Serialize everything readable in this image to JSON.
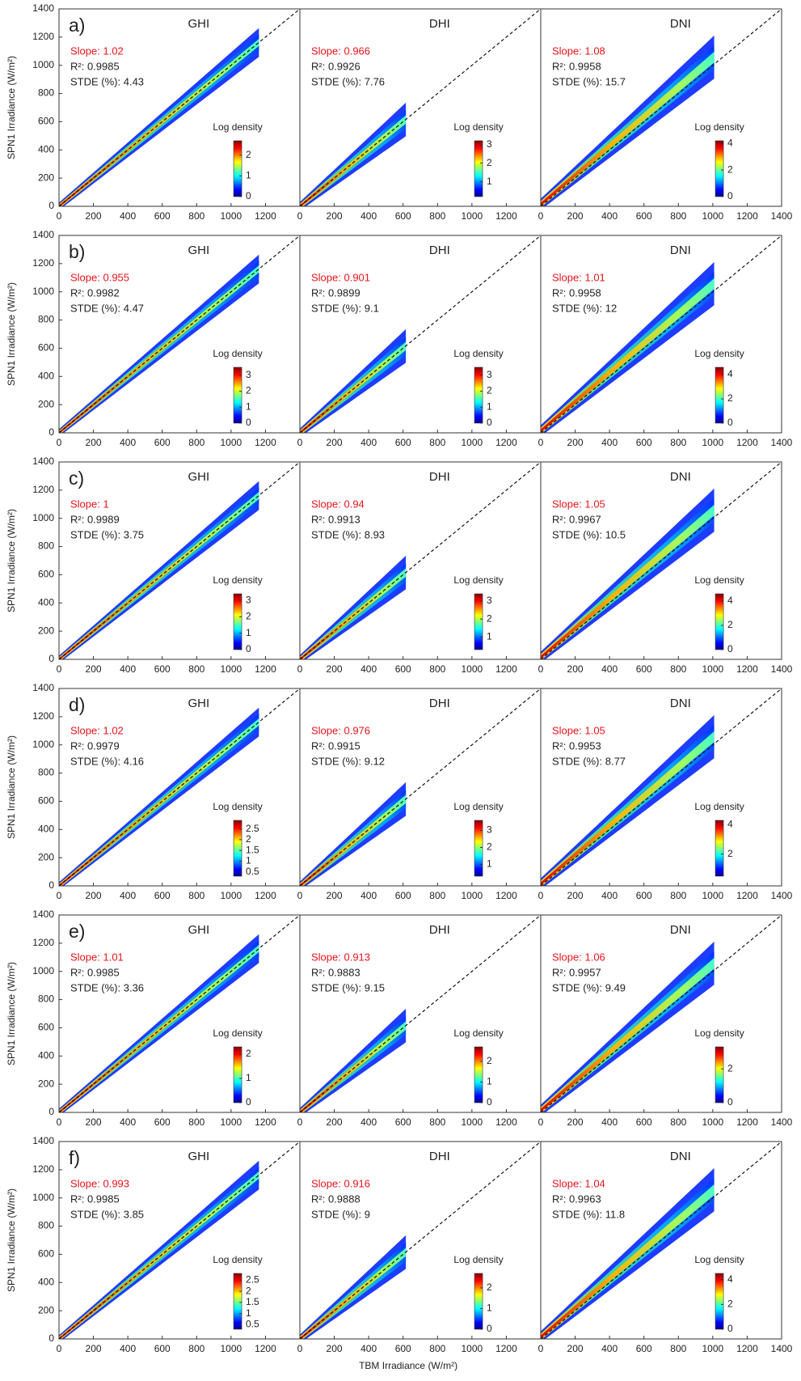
{
  "chart_data": [
    {
      "type": "scatter",
      "panel": "a)",
      "title": "GHI",
      "ylabel": "SPN1 Irradiance (W/m²)",
      "annotations": [
        "Slope: 1.02",
        "R²: 0.9985",
        "STDE (%): 4.43"
      ],
      "annotation_colors": [
        "#e8141b",
        "#222222",
        "#222222"
      ],
      "xlim": [
        0,
        1400
      ],
      "ylim": [
        0,
        1400
      ],
      "xticks": [
        0,
        200,
        400,
        600,
        800,
        1000,
        1200
      ],
      "yticks": [
        0,
        200,
        400,
        600,
        800,
        1000,
        1200,
        1400
      ],
      "colorbar": {
        "title": "Log density",
        "lim": [
          0,
          2.7
        ],
        "ticks": [
          0,
          1,
          2
        ]
      }
    },
    {
      "type": "scatter",
      "title": "DHI",
      "annotations": [
        "Slope: 0.966",
        "R²: 0.9926",
        "STDE (%): 7.76"
      ],
      "annotation_colors": [
        "#e8141b",
        "#222222",
        "#222222"
      ],
      "xlim": [
        0,
        1400
      ],
      "ylim": [
        0,
        1400
      ],
      "xticks": [
        0,
        200,
        400,
        600,
        800,
        1000,
        1200
      ],
      "colorbar": {
        "title": "Log density",
        "lim": [
          0.2,
          3.2
        ],
        "ticks": [
          1,
          2,
          3
        ]
      }
    },
    {
      "type": "scatter",
      "title": "DNI",
      "annotations": [
        "Slope: 1.08",
        "R²: 0.9958",
        "STDE (%): 15.7"
      ],
      "annotation_colors": [
        "#e8141b",
        "#222222",
        "#222222"
      ],
      "xlim": [
        0,
        1400
      ],
      "ylim": [
        0,
        1400
      ],
      "xticks": [
        0,
        200,
        400,
        600,
        800,
        1000,
        1200,
        1400
      ],
      "colorbar": {
        "title": "Log density",
        "lim": [
          0,
          4.2
        ],
        "ticks": [
          0,
          2,
          4
        ]
      }
    },
    {
      "type": "scatter",
      "panel": "b)",
      "title": "GHI",
      "ylabel": "SPN1 Irradiance (W/m²)",
      "annotations": [
        "Slope: 0.955",
        "R²: 0.9982",
        "STDE (%): 4.47"
      ],
      "annotation_colors": [
        "#e8141b",
        "#222222",
        "#222222"
      ],
      "xlim": [
        0,
        1400
      ],
      "ylim": [
        0,
        1400
      ],
      "xticks": [
        0,
        200,
        400,
        600,
        800,
        1000,
        1200
      ],
      "yticks": [
        0,
        200,
        400,
        600,
        800,
        1000,
        1200,
        1400
      ],
      "colorbar": {
        "title": "Log density",
        "lim": [
          0,
          3.5
        ],
        "ticks": [
          0,
          1,
          2,
          3
        ]
      }
    },
    {
      "type": "scatter",
      "title": "DHI",
      "annotations": [
        "Slope: 0.901",
        "R²: 0.9899",
        "STDE (%): 9.1"
      ],
      "annotation_colors": [
        "#e8141b",
        "#222222",
        "#222222"
      ],
      "xlim": [
        0,
        1400
      ],
      "ylim": [
        0,
        1400
      ],
      "xticks": [
        0,
        200,
        400,
        600,
        800,
        1000,
        1200
      ],
      "colorbar": {
        "title": "Log density",
        "lim": [
          0,
          3.5
        ],
        "ticks": [
          0,
          1,
          2,
          3
        ]
      }
    },
    {
      "type": "scatter",
      "title": "DNI",
      "annotations": [
        "Slope: 1.01",
        "R²: 0.9958",
        "STDE (%): 12"
      ],
      "annotation_colors": [
        "#e8141b",
        "#222222",
        "#222222"
      ],
      "xlim": [
        0,
        1400
      ],
      "ylim": [
        0,
        1400
      ],
      "xticks": [
        0,
        200,
        400,
        600,
        800,
        1000,
        1200,
        1400
      ],
      "colorbar": {
        "title": "Log density",
        "lim": [
          0,
          4.6
        ],
        "ticks": [
          0,
          2,
          4
        ]
      }
    },
    {
      "type": "scatter",
      "panel": "c)",
      "title": "GHI",
      "ylabel": "SPN1 Irradiance (W/m²)",
      "annotations": [
        "Slope: 1",
        "R²: 0.9989",
        "STDE (%): 3.75"
      ],
      "annotation_colors": [
        "#e8141b",
        "#222222",
        "#222222"
      ],
      "xlim": [
        0,
        1400
      ],
      "ylim": [
        0,
        1400
      ],
      "xticks": [
        0,
        200,
        400,
        600,
        800,
        1000,
        1200
      ],
      "yticks": [
        0,
        200,
        400,
        600,
        800,
        1000,
        1200,
        1400
      ],
      "colorbar": {
        "title": "Log density",
        "lim": [
          0,
          3.4
        ],
        "ticks": [
          0,
          1,
          2,
          3
        ]
      }
    },
    {
      "type": "scatter",
      "title": "DHI",
      "annotations": [
        "Slope: 0.94",
        "R²: 0.9913",
        "STDE (%): 8.93"
      ],
      "annotation_colors": [
        "#e8141b",
        "#222222",
        "#222222"
      ],
      "xlim": [
        0,
        1400
      ],
      "ylim": [
        0,
        1400
      ],
      "xticks": [
        0,
        200,
        400,
        600,
        800,
        1000,
        1200
      ],
      "colorbar": {
        "title": "Log density",
        "lim": [
          0.3,
          3.4
        ],
        "ticks": [
          1,
          2,
          3
        ]
      }
    },
    {
      "type": "scatter",
      "title": "DNI",
      "annotations": [
        "Slope: 1.05",
        "R²: 0.9967",
        "STDE (%): 10.5"
      ],
      "annotation_colors": [
        "#e8141b",
        "#222222",
        "#222222"
      ],
      "xlim": [
        0,
        1400
      ],
      "ylim": [
        0,
        1400
      ],
      "xticks": [
        0,
        200,
        400,
        600,
        800,
        1000,
        1200,
        1400
      ],
      "colorbar": {
        "title": "Log density",
        "lim": [
          0,
          4.6
        ],
        "ticks": [
          0,
          2,
          4
        ]
      }
    },
    {
      "type": "scatter",
      "panel": "d)",
      "title": "GHI",
      "ylabel": "SPN1 Irradiance (W/m²)",
      "annotations": [
        "Slope: 1.02",
        "R²: 0.9979",
        "STDE (%): 4.16"
      ],
      "annotation_colors": [
        "#e8141b",
        "#222222",
        "#222222"
      ],
      "xlim": [
        0,
        1400
      ],
      "ylim": [
        0,
        1400
      ],
      "xticks": [
        0,
        200,
        400,
        600,
        800,
        1000,
        1200
      ],
      "yticks": [
        0,
        200,
        400,
        600,
        800,
        1000,
        1200,
        1400
      ],
      "colorbar": {
        "title": "Log density",
        "lim": [
          0.3,
          2.9
        ],
        "ticks": [
          0.5,
          1,
          1.5,
          2,
          2.5
        ]
      }
    },
    {
      "type": "scatter",
      "title": "DHI",
      "annotations": [
        "Slope: 0.976",
        "R²: 0.9915",
        "STDE (%): 9.12"
      ],
      "annotation_colors": [
        "#e8141b",
        "#222222",
        "#222222"
      ],
      "xlim": [
        0,
        1400
      ],
      "ylim": [
        0,
        1400
      ],
      "xticks": [
        0,
        200,
        400,
        600,
        800,
        1000,
        1200
      ],
      "colorbar": {
        "title": "Log density",
        "lim": [
          0.3,
          3.6
        ],
        "ticks": [
          1,
          2,
          3
        ]
      }
    },
    {
      "type": "scatter",
      "title": "DNI",
      "annotations": [
        "Slope: 1.05",
        "R²: 0.9953",
        "STDE (%): 8.77"
      ],
      "annotation_colors": [
        "#e8141b",
        "#222222",
        "#222222"
      ],
      "xlim": [
        0,
        1400
      ],
      "ylim": [
        0,
        1400
      ],
      "xticks": [
        0,
        200,
        400,
        600,
        800,
        1000,
        1200,
        1400
      ],
      "colorbar": {
        "title": "Log density",
        "lim": [
          0.5,
          4.3
        ],
        "ticks": [
          2,
          4
        ]
      }
    },
    {
      "type": "scatter",
      "panel": "e)",
      "title": "GHI",
      "ylabel": "SPN1 Irradiance (W/m²)",
      "annotations": [
        "Slope: 1.01",
        "R²: 0.9985",
        "STDE (%): 3.36"
      ],
      "annotation_colors": [
        "#e8141b",
        "#222222",
        "#222222"
      ],
      "xlim": [
        0,
        1400
      ],
      "ylim": [
        0,
        1400
      ],
      "xticks": [
        0,
        200,
        400,
        600,
        800,
        1000,
        1200
      ],
      "yticks": [
        0,
        200,
        400,
        600,
        800,
        1000,
        1200,
        1400
      ],
      "colorbar": {
        "title": "Log density",
        "lim": [
          0,
          2.3
        ],
        "ticks": [
          0,
          1,
          2
        ]
      }
    },
    {
      "type": "scatter",
      "title": "DHI",
      "annotations": [
        "Slope: 0.913",
        "R²: 0.9883",
        "STDE (%): 9.15"
      ],
      "annotation_colors": [
        "#e8141b",
        "#222222",
        "#222222"
      ],
      "xlim": [
        0,
        1400
      ],
      "ylim": [
        0,
        1400
      ],
      "xticks": [
        0,
        200,
        400,
        600,
        800,
        1000,
        1200
      ],
      "colorbar": {
        "title": "Log density",
        "lim": [
          0,
          2.7
        ],
        "ticks": [
          0,
          1,
          2
        ]
      }
    },
    {
      "type": "scatter",
      "title": "DNI",
      "annotations": [
        "Slope: 1.06",
        "R²: 0.9957",
        "STDE (%): 9.49"
      ],
      "annotation_colors": [
        "#e8141b",
        "#222222",
        "#222222"
      ],
      "xlim": [
        0,
        1400
      ],
      "ylim": [
        0,
        1400
      ],
      "xticks": [
        0,
        200,
        400,
        600,
        800,
        1000,
        1200,
        1400
      ],
      "colorbar": {
        "title": "Log density",
        "lim": [
          0,
          3.3
        ],
        "ticks": [
          0,
          2
        ]
      }
    },
    {
      "type": "scatter",
      "panel": "f)",
      "title": "GHI",
      "ylabel": "SPN1 Irradiance (W/m²)",
      "annotations": [
        "Slope: 0.993",
        "R²: 0.9985",
        "STDE (%): 3.85"
      ],
      "annotation_colors": [
        "#e8141b",
        "#222222",
        "#222222"
      ],
      "xlim": [
        0,
        1400
      ],
      "ylim": [
        0,
        1400
      ],
      "xticks": [
        0,
        200,
        400,
        600,
        800,
        1000,
        1200
      ],
      "yticks": [
        0,
        200,
        400,
        600,
        800,
        1000,
        1200,
        1400
      ],
      "colorbar": {
        "title": "Log density",
        "lim": [
          0.3,
          2.8
        ],
        "ticks": [
          0.5,
          1,
          1.5,
          2,
          2.5
        ]
      }
    },
    {
      "type": "scatter",
      "title": "DHI",
      "xlabel": "TBM Irradiance (W/m²)",
      "annotations": [
        "Slope: 0.916",
        "R²: 0.9888",
        "STDE (%): 9"
      ],
      "annotation_colors": [
        "#e8141b",
        "#222222",
        "#222222"
      ],
      "xlim": [
        0,
        1400
      ],
      "ylim": [
        0,
        1400
      ],
      "xticks": [
        0,
        200,
        400,
        600,
        800,
        1000,
        1200
      ],
      "colorbar": {
        "title": "Log density",
        "lim": [
          0,
          2.7
        ],
        "ticks": [
          0,
          1,
          2
        ]
      }
    },
    {
      "type": "scatter",
      "title": "DNI",
      "annotations": [
        "Slope: 1.04",
        "R²: 0.9963",
        "STDE (%): 11.8"
      ],
      "annotation_colors": [
        "#e8141b",
        "#222222",
        "#222222"
      ],
      "xlim": [
        0,
        1400
      ],
      "ylim": [
        0,
        1400
      ],
      "xticks": [
        0,
        200,
        400,
        600,
        800,
        1000,
        1200,
        1400
      ],
      "colorbar": {
        "title": "Log density",
        "lim": [
          0,
          4.5
        ],
        "ticks": [
          0,
          2,
          4
        ]
      }
    }
  ]
}
